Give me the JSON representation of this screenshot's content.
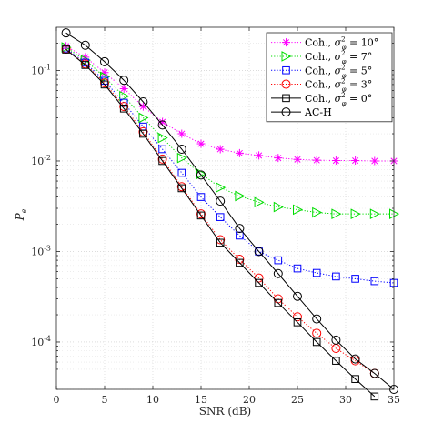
{
  "chart_data": {
    "type": "line",
    "xlabel": "SNR (dB)",
    "ylabel": "P_e",
    "ylabel_main": "P",
    "ylabel_sub": "e",
    "xlim": [
      0,
      35
    ],
    "ylim": [
      3e-05,
      0.3
    ],
    "yscale": "log",
    "grid": true,
    "legend_position": "top-right",
    "x_ticks": [
      0,
      5,
      10,
      15,
      20,
      25,
      30,
      35
    ],
    "x_tick_labels": [
      "0",
      "5",
      "10",
      "15",
      "20",
      "25",
      "30",
      "35"
    ],
    "y_ticks": [
      0.0001,
      0.001,
      0.01,
      0.1
    ],
    "y_tick_labels": [
      [
        "10",
        "-4"
      ],
      [
        "10",
        "-3"
      ],
      [
        "10",
        "-2"
      ],
      [
        "10",
        "-1"
      ]
    ],
    "series": [
      {
        "name": "Coh., σ²_φ = 10°",
        "legend_main": "Coh., ",
        "legend_sym": "σ",
        "legend_sup": "2",
        "legend_sub": "φ",
        "legend_val": " = 10°",
        "color": "#ff00ff",
        "marker": "star",
        "line": "dotted",
        "x": [
          1,
          3,
          5,
          7,
          9,
          11,
          13,
          15,
          17,
          19,
          21,
          23,
          25,
          27,
          29,
          31,
          33,
          35
        ],
        "y": [
          0.185,
          0.14,
          0.095,
          0.063,
          0.04,
          0.027,
          0.02,
          0.0155,
          0.0135,
          0.0122,
          0.0115,
          0.0108,
          0.0104,
          0.0102,
          0.0101,
          0.0101,
          0.01,
          0.01
        ]
      },
      {
        "name": "Coh., σ²_φ = 7°",
        "legend_main": "Coh., ",
        "legend_sym": "σ",
        "legend_sup": "2",
        "legend_sub": "φ",
        "legend_val": " = 7°",
        "color": "#00dd00",
        "marker": "triangle-right",
        "line": "dotted",
        "x": [
          1,
          3,
          5,
          7,
          9,
          11,
          13,
          15,
          17,
          19,
          21,
          23,
          25,
          27,
          29,
          31,
          33,
          35
        ],
        "y": [
          0.18,
          0.13,
          0.085,
          0.052,
          0.03,
          0.018,
          0.0108,
          0.0072,
          0.0051,
          0.0041,
          0.0035,
          0.0031,
          0.0029,
          0.0027,
          0.0026,
          0.0026,
          0.0026,
          0.0026
        ]
      },
      {
        "name": "Coh., σ²_φ = 5°",
        "legend_main": "Coh., ",
        "legend_sym": "σ",
        "legend_sup": "2",
        "legend_sub": "φ",
        "legend_val": " = 5°",
        "color": "#0000ff",
        "marker": "square",
        "line": "dotted",
        "x": [
          1,
          3,
          5,
          7,
          9,
          11,
          13,
          15,
          17,
          19,
          21,
          23,
          25,
          27,
          29,
          31,
          33,
          35
        ],
        "y": [
          0.175,
          0.122,
          0.077,
          0.044,
          0.024,
          0.0135,
          0.0074,
          0.004,
          0.0024,
          0.0015,
          0.001,
          0.0008,
          0.00065,
          0.00058,
          0.00053,
          0.0005,
          0.00047,
          0.00045
        ]
      },
      {
        "name": "Coh., σ²_φ = 3°",
        "legend_main": "Coh., ",
        "legend_sym": "σ",
        "legend_sup": "2",
        "legend_sub": "φ",
        "legend_val": " = 3°",
        "color": "#ff0000",
        "marker": "circle",
        "line": "dotted",
        "x": [
          1,
          3,
          5,
          7,
          9,
          11,
          13,
          15,
          17,
          19,
          21,
          23,
          25,
          27,
          29,
          31,
          33
        ],
        "y": [
          0.172,
          0.118,
          0.073,
          0.04,
          0.021,
          0.0105,
          0.0052,
          0.0026,
          0.00135,
          0.00082,
          0.00051,
          0.0003,
          0.00019,
          0.000125,
          8.5e-05,
          6.2e-05,
          4.5e-05
        ]
      },
      {
        "name": "Coh., σ²_φ = 0°",
        "legend_main": "Coh., ",
        "legend_sym": "σ",
        "legend_sup": "2",
        "legend_sub": "φ",
        "legend_val": " = 0°",
        "color": "#000000",
        "marker": "square",
        "line": "solid",
        "x": [
          1,
          3,
          5,
          7,
          9,
          11,
          13,
          15,
          17,
          19,
          21,
          23,
          25,
          27,
          29,
          31,
          33
        ],
        "y": [
          0.17,
          0.115,
          0.07,
          0.038,
          0.02,
          0.01,
          0.005,
          0.0025,
          0.00125,
          0.00075,
          0.00045,
          0.00027,
          0.000165,
          0.0001,
          6.2e-05,
          3.9e-05,
          2.5e-05
        ]
      },
      {
        "name": "AC-H",
        "legend_main": "AC-H",
        "legend_sym": "",
        "legend_sup": "",
        "legend_sub": "",
        "legend_val": "",
        "color": "#000000",
        "marker": "circle",
        "line": "solid",
        "x": [
          1,
          3,
          5,
          7,
          9,
          11,
          13,
          15,
          17,
          19,
          21,
          23,
          25,
          27,
          29,
          31,
          33,
          35
        ],
        "y": [
          0.26,
          0.19,
          0.125,
          0.078,
          0.045,
          0.025,
          0.0135,
          0.007,
          0.0036,
          0.0018,
          0.001,
          0.00057,
          0.00032,
          0.00018,
          0.000105,
          6.5e-05,
          4.5e-05,
          3e-05
        ]
      }
    ]
  }
}
